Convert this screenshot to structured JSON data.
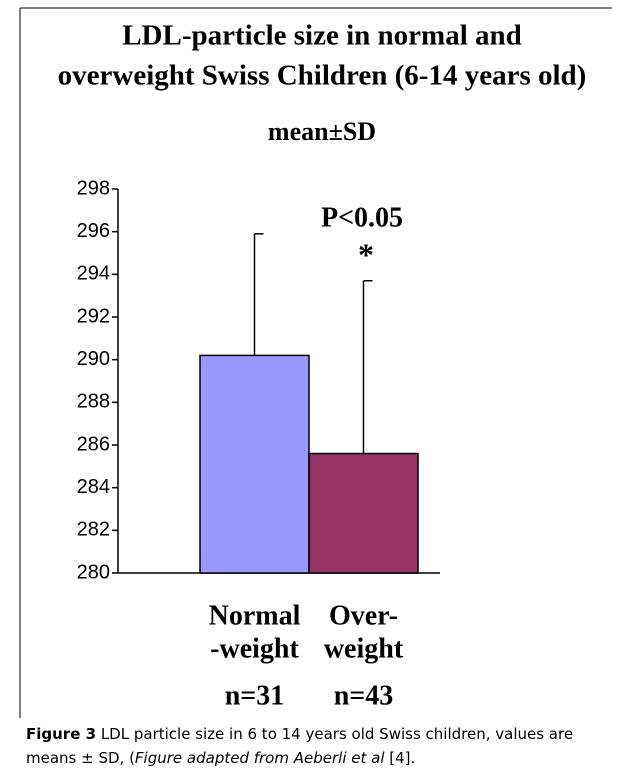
{
  "chart_data": {
    "type": "bar",
    "title": [
      "LDL-particle size in normal and",
      "overweight Swiss Children (6-14 years old)"
    ],
    "subtitle": "mean±SD",
    "categories": [
      [
        "Normal",
        "-weight"
      ],
      [
        "Over-",
        "weight"
      ]
    ],
    "category_notes": [
      "n=31",
      "n=43"
    ],
    "values": [
      290.2,
      285.6
    ],
    "errors": [
      5.7,
      8.1
    ],
    "colors": [
      "#9999ff",
      "#993366"
    ],
    "annotations": [
      "P<0.05",
      "*"
    ],
    "ylim": [
      280,
      298
    ],
    "yticks": [
      280,
      282,
      284,
      286,
      288,
      290,
      292,
      294,
      296,
      298
    ]
  },
  "caption": {
    "label": "Figure 3",
    "text": "LDL particle size in 6 to 14 years old Swiss children, values are means ± SD, (",
    "italic": "Figure adapted from Aeberli et al",
    "ref": "[4]."
  }
}
